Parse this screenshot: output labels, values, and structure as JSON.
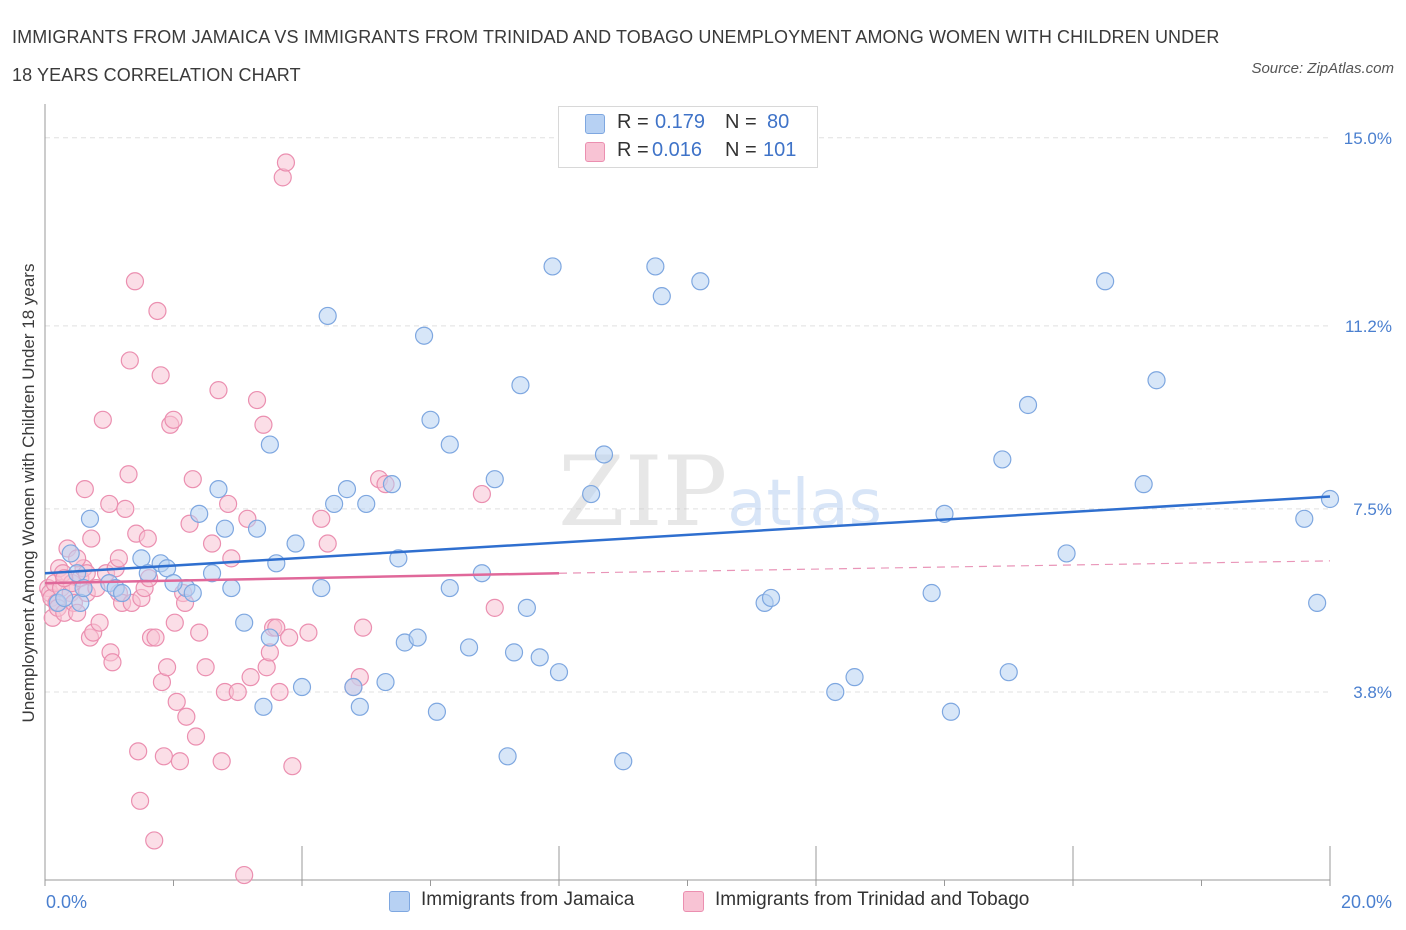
{
  "title": "IMMIGRANTS FROM JAMAICA VS IMMIGRANTS FROM TRINIDAD AND TOBAGO UNEMPLOYMENT AMONG WOMEN WITH CHILDREN UNDER 18 YEARS CORRELATION CHART",
  "source": "Source: ZipAtlas.com",
  "watermark": "ZIPatlas",
  "legend": {
    "r_label": "R =",
    "n_label": "N =",
    "rows": [
      {
        "r": "0.179",
        "n": "80"
      },
      {
        "r": "0.016",
        "n": "101"
      }
    ]
  },
  "colors": {
    "jamaica_fill": "#b7d1f3",
    "jamaica_stroke": "#7ea7e0",
    "jamaica_line": "#2f6fcf",
    "trinidad_fill": "#f8c3d4",
    "trinidad_stroke": "#eb8fb0",
    "trinidad_line": "#e0689a",
    "tick_text": "#4a7fcf",
    "grid": "#e0e0e0"
  },
  "chart_data": {
    "type": "scatter",
    "title": "IMMIGRANTS FROM JAMAICA VS IMMIGRANTS FROM TRINIDAD AND TOBAGO UNEMPLOYMENT AMONG WOMEN WITH CHILDREN UNDER 18 YEARS CORRELATION CHART",
    "xlabel": "",
    "ylabel": "Unemployment Among Women with Children Under 18 years",
    "xlim": [
      0,
      20
    ],
    "ylim": [
      0,
      15.4
    ],
    "x_tick_labels": [
      "0.0%",
      "20.0%"
    ],
    "y_ticks": [
      3.8,
      7.5,
      11.2,
      15.0
    ],
    "y_tick_labels": [
      "3.8%",
      "7.5%",
      "11.2%",
      "15.0%"
    ],
    "grid": "horizontal dashed",
    "legend_position": "bottom-center",
    "series": [
      {
        "name": "Immigrants from Jamaica",
        "r": 0.179,
        "n": 80,
        "trend": {
          "x": [
            0,
            20
          ],
          "y": [
            6.2,
            7.75
          ],
          "style": "solid"
        },
        "points": [
          [
            0.2,
            5.6
          ],
          [
            0.3,
            5.7
          ],
          [
            0.4,
            6.6
          ],
          [
            0.5,
            6.2
          ],
          [
            0.55,
            5.6
          ],
          [
            0.6,
            5.9
          ],
          [
            0.7,
            7.3
          ],
          [
            1.0,
            6.0
          ],
          [
            1.1,
            5.9
          ],
          [
            1.5,
            6.5
          ],
          [
            1.6,
            6.2
          ],
          [
            1.8,
            6.4
          ],
          [
            1.9,
            6.3
          ],
          [
            2.2,
            5.9
          ],
          [
            2.3,
            5.8
          ],
          [
            2.4,
            7.4
          ],
          [
            2.6,
            6.2
          ],
          [
            2.7,
            7.9
          ],
          [
            2.8,
            7.1
          ],
          [
            2.9,
            5.9
          ],
          [
            3.1,
            5.2
          ],
          [
            3.3,
            7.1
          ],
          [
            3.4,
            3.5
          ],
          [
            3.5,
            8.8
          ],
          [
            3.5,
            4.9
          ],
          [
            3.6,
            6.4
          ],
          [
            3.9,
            6.8
          ],
          [
            4.0,
            3.9
          ],
          [
            4.3,
            5.9
          ],
          [
            4.4,
            11.4
          ],
          [
            4.5,
            7.6
          ],
          [
            4.7,
            7.9
          ],
          [
            4.8,
            3.9
          ],
          [
            4.9,
            3.5
          ],
          [
            5.0,
            7.6
          ],
          [
            5.3,
            4.0
          ],
          [
            5.4,
            8.0
          ],
          [
            5.5,
            6.5
          ],
          [
            5.6,
            4.8
          ],
          [
            5.8,
            4.9
          ],
          [
            5.9,
            11.0
          ],
          [
            6.0,
            9.3
          ],
          [
            6.1,
            3.4
          ],
          [
            6.3,
            8.8
          ],
          [
            6.3,
            5.9
          ],
          [
            6.6,
            4.7
          ],
          [
            6.8,
            6.2
          ],
          [
            7.0,
            8.1
          ],
          [
            7.2,
            2.5
          ],
          [
            7.3,
            4.6
          ],
          [
            7.4,
            10.0
          ],
          [
            7.5,
            5.5
          ],
          [
            7.7,
            4.5
          ],
          [
            7.9,
            12.4
          ],
          [
            8.0,
            4.2
          ],
          [
            8.5,
            7.8
          ],
          [
            8.7,
            8.6
          ],
          [
            9.0,
            2.4
          ],
          [
            9.5,
            12.4
          ],
          [
            9.6,
            11.8
          ],
          [
            10.2,
            12.1
          ],
          [
            11.2,
            5.6
          ],
          [
            11.3,
            5.7
          ],
          [
            12.3,
            3.8
          ],
          [
            12.6,
            4.1
          ],
          [
            13.8,
            5.8
          ],
          [
            14.0,
            7.4
          ],
          [
            14.1,
            3.4
          ],
          [
            14.9,
            8.5
          ],
          [
            15.0,
            4.2
          ],
          [
            15.3,
            9.6
          ],
          [
            15.9,
            6.6
          ],
          [
            16.5,
            12.1
          ],
          [
            17.1,
            8.0
          ],
          [
            17.3,
            10.1
          ],
          [
            19.6,
            7.3
          ],
          [
            19.8,
            5.6
          ],
          [
            20.0,
            7.7
          ],
          [
            1.2,
            5.8
          ],
          [
            2.0,
            6.0
          ]
        ]
      },
      {
        "name": "Immigrants from Trinidad and Tobago",
        "r": 0.016,
        "n": 101,
        "trend": {
          "x": [
            0,
            8
          ],
          "y": [
            6.0,
            6.2
          ],
          "style": "solid",
          "extended_to": [
            20,
            6.45
          ],
          "extended_style": "dashed"
        },
        "points": [
          [
            0.05,
            5.9
          ],
          [
            0.08,
            5.8
          ],
          [
            0.1,
            5.7
          ],
          [
            0.12,
            5.3
          ],
          [
            0.15,
            6.0
          ],
          [
            0.18,
            5.6
          ],
          [
            0.2,
            5.5
          ],
          [
            0.22,
            6.3
          ],
          [
            0.25,
            5.9
          ],
          [
            0.28,
            6.2
          ],
          [
            0.3,
            5.4
          ],
          [
            0.35,
            6.7
          ],
          [
            0.4,
            5.8
          ],
          [
            0.42,
            6.0
          ],
          [
            0.45,
            5.6
          ],
          [
            0.5,
            5.4
          ],
          [
            0.55,
            6.1
          ],
          [
            0.6,
            6.3
          ],
          [
            0.62,
            7.9
          ],
          [
            0.65,
            5.8
          ],
          [
            0.7,
            4.9
          ],
          [
            0.72,
            6.9
          ],
          [
            0.75,
            5.0
          ],
          [
            0.8,
            5.9
          ],
          [
            0.85,
            5.2
          ],
          [
            0.9,
            9.3
          ],
          [
            0.95,
            6.2
          ],
          [
            1.0,
            7.6
          ],
          [
            1.02,
            4.6
          ],
          [
            1.05,
            4.4
          ],
          [
            1.1,
            6.3
          ],
          [
            1.15,
            5.8
          ],
          [
            1.2,
            5.6
          ],
          [
            1.25,
            7.5
          ],
          [
            1.3,
            8.2
          ],
          [
            1.32,
            10.5
          ],
          [
            1.35,
            5.6
          ],
          [
            1.4,
            12.1
          ],
          [
            1.42,
            7.0
          ],
          [
            1.45,
            2.6
          ],
          [
            1.48,
            1.6
          ],
          [
            1.5,
            5.7
          ],
          [
            1.55,
            5.9
          ],
          [
            1.6,
            6.9
          ],
          [
            1.62,
            6.1
          ],
          [
            1.65,
            4.9
          ],
          [
            1.7,
            0.8
          ],
          [
            1.72,
            4.9
          ],
          [
            1.75,
            11.5
          ],
          [
            1.8,
            10.2
          ],
          [
            1.82,
            4.0
          ],
          [
            1.85,
            2.5
          ],
          [
            1.9,
            4.3
          ],
          [
            1.95,
            9.2
          ],
          [
            2.0,
            9.3
          ],
          [
            2.02,
            5.2
          ],
          [
            2.05,
            3.6
          ],
          [
            2.1,
            2.4
          ],
          [
            2.15,
            5.8
          ],
          [
            2.18,
            5.6
          ],
          [
            2.2,
            3.3
          ],
          [
            2.25,
            7.2
          ],
          [
            2.3,
            8.1
          ],
          [
            2.35,
            2.9
          ],
          [
            2.4,
            5.0
          ],
          [
            2.5,
            4.3
          ],
          [
            2.6,
            6.8
          ],
          [
            2.7,
            9.9
          ],
          [
            2.75,
            2.4
          ],
          [
            2.8,
            3.8
          ],
          [
            2.85,
            7.6
          ],
          [
            2.9,
            6.5
          ],
          [
            3.0,
            3.8
          ],
          [
            3.1,
            0.1
          ],
          [
            3.15,
            7.3
          ],
          [
            3.2,
            4.1
          ],
          [
            3.3,
            9.7
          ],
          [
            3.4,
            9.2
          ],
          [
            3.45,
            4.3
          ],
          [
            3.5,
            4.6
          ],
          [
            3.55,
            5.1
          ],
          [
            3.6,
            5.1
          ],
          [
            3.65,
            3.8
          ],
          [
            3.7,
            14.2
          ],
          [
            3.75,
            14.5
          ],
          [
            3.8,
            4.9
          ],
          [
            3.85,
            2.3
          ],
          [
            4.1,
            5.0
          ],
          [
            4.3,
            7.3
          ],
          [
            4.4,
            6.8
          ],
          [
            4.9,
            4.1
          ],
          [
            4.8,
            3.9
          ],
          [
            4.95,
            5.1
          ],
          [
            5.2,
            8.1
          ],
          [
            5.3,
            8.0
          ],
          [
            6.8,
            7.8
          ],
          [
            7.0,
            5.5
          ],
          [
            0.3,
            6.1
          ],
          [
            0.5,
            6.5
          ],
          [
            0.65,
            6.2
          ],
          [
            1.15,
            6.5
          ]
        ]
      }
    ]
  },
  "bottom_legend": {
    "items": [
      "Immigrants from Jamaica",
      "Immigrants from Trinidad and Tobago"
    ]
  }
}
